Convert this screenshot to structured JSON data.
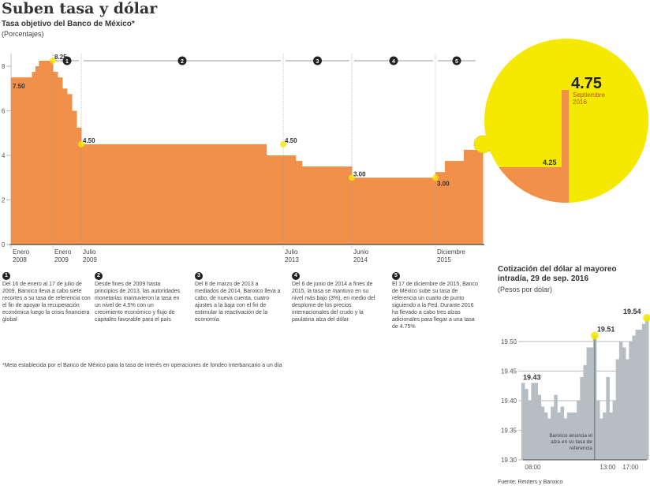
{
  "title": "Suben tasa y dólar",
  "chart_data": [
    {
      "type": "area",
      "title": "Tasa objetivo del Banco de México*",
      "ylabel": "(Porcentajes)",
      "ylim": [
        0,
        8.6
      ],
      "yticks": [
        0,
        2,
        4,
        6,
        8
      ],
      "step": true,
      "color": "#f0904a",
      "series": [
        {
          "x": [
            "2008-01",
            "2008-07",
            "2008-08",
            "2008-09",
            "2009-01",
            "2009-02",
            "2009-03",
            "2009-04",
            "2009-05",
            "2009-06",
            "2009-07",
            "2013-03",
            "2013-09",
            "2013-10",
            "2014-06",
            "2015-12",
            "2016-02",
            "2016-06",
            "2016-09"
          ],
          "values": [
            7.5,
            7.75,
            8.0,
            8.25,
            7.75,
            7.5,
            7.0,
            6.75,
            6.0,
            5.25,
            4.5,
            4.0,
            3.75,
            3.5,
            3.0,
            3.25,
            3.75,
            4.25,
            4.75
          ]
        }
      ],
      "xticks": [
        {
          "date": "2008-01",
          "label": [
            "Enero",
            "2008"
          ]
        },
        {
          "date": "2009-01",
          "label": [
            "Enero",
            "2009"
          ]
        },
        {
          "date": "2009-07",
          "label": [
            "Julio",
            "2009"
          ]
        },
        {
          "date": "2013-07",
          "label": [
            "Julio",
            "2013"
          ]
        },
        {
          "date": "2014-06",
          "label": [
            "Junio",
            "2014"
          ]
        },
        {
          "date": "2015-12",
          "label": [
            "Diciembre",
            "2015"
          ]
        }
      ],
      "annotations": [
        {
          "date": "2008-01",
          "value": 7.5,
          "label": "7.50"
        },
        {
          "date": "2009-01",
          "value": 8.25,
          "label": "8.25"
        },
        {
          "date": "2009-07",
          "value": 4.5,
          "label": "4.50"
        },
        {
          "date": "2013-07",
          "value": 4.5,
          "label": "4.50"
        },
        {
          "date": "2014-06",
          "value": 3.0,
          "label": "3.00"
        },
        {
          "date": "2015-12",
          "value": 3.0,
          "label": "3.00"
        }
      ],
      "periods": [
        {
          "n": "1",
          "from": "2009-01",
          "to": "2009-07"
        },
        {
          "n": "2",
          "from": "2009-07",
          "to": "2013-07"
        },
        {
          "n": "3",
          "from": "2013-07",
          "to": "2014-06"
        },
        {
          "n": "4",
          "from": "2014-06",
          "to": "2015-12"
        },
        {
          "n": "5",
          "from": "2015-12",
          "to": "2016-09"
        }
      ],
      "inset": {
        "prev_value": "4.25",
        "value": "4.75",
        "date_label": [
          "Septiembre",
          "2016"
        ],
        "highlight": "#f5e900"
      }
    },
    {
      "type": "area",
      "title": "Cotización del dólar al mayoreo intradía, 29 de sep. 2016",
      "ylabel": "(Pesos por dólar)",
      "ylim": [
        19.3,
        19.55
      ],
      "yticks": [
        "19.30",
        "19.35",
        "19.40",
        "19.45",
        "19.50"
      ],
      "color": "#b6bec4",
      "values": [
        19.43,
        19.42,
        19.4,
        19.43,
        19.43,
        19.41,
        19.39,
        19.38,
        19.37,
        19.39,
        19.41,
        19.38,
        19.39,
        19.37,
        19.38,
        19.38,
        19.38,
        19.4,
        19.44,
        19.46,
        19.49,
        19.49,
        19.51,
        19.4,
        19.37,
        19.38,
        19.44,
        19.38,
        19.4,
        19.47,
        19.5,
        19.49,
        19.47,
        19.5,
        19.51,
        19.52,
        19.52,
        19.53,
        19.54
      ],
      "xticks": [
        {
          "i": 3,
          "label": "08:00"
        },
        {
          "i": 26,
          "label": "13:00"
        },
        {
          "i": 33,
          "label": "17:00"
        }
      ],
      "annotations": [
        {
          "i": 0,
          "label": "19.43"
        },
        {
          "i": 22,
          "label": "19.51"
        },
        {
          "i": 38,
          "label": "19.54"
        }
      ],
      "event": {
        "i": 22,
        "label": [
          "Banxico anuncia el",
          "alza en su tasa de",
          "referencia"
        ]
      }
    }
  ],
  "notes": [
    {
      "n": "1",
      "text": "Del 16 de enero al 17 de julio de 2009, Banxico lleva a cabo siete recortes a su tasa de referencia con el fin de apoyar la recuperación económica luego la crisis financiera global"
    },
    {
      "n": "2",
      "text": "Desde fines de 2009 hasta principios de 2013, las autoridades monetarias mantuvieron la tasa en un nivel de 4.5% con un crecimiento económico y flujo de capitales favorable para el país"
    },
    {
      "n": "3",
      "text": "Del 8 de marzo de 2013 a mediados de 2014, Banxico lleva a cabo, de nueva cuenta, cuatro ajustes a la baja con el fin de estimular la reactivación de la economía"
    },
    {
      "n": "4",
      "text": "Del 6 de junio de 2014 a fines de 2015, la tasa se mantuvo en su nivel más bajo (3%), en medio del desplome de los precios internacionales del crudo y la paulatina alza del dólar"
    },
    {
      "n": "5",
      "text": "El 17 de diciembre de 2015, Banco de México sube su tasa de referencia un cuarto de punto siguiendo a la Fed. Durante 2016 ha llevado a cabo tres alzas adicionales para llegar a una tasa de 4.75%"
    }
  ],
  "footnote": "*Meta establecida por el Banco de México para la tasa de interés en operaciones de fondeo interbancario a un día",
  "source": "Fuente: Reuters y Banxico"
}
